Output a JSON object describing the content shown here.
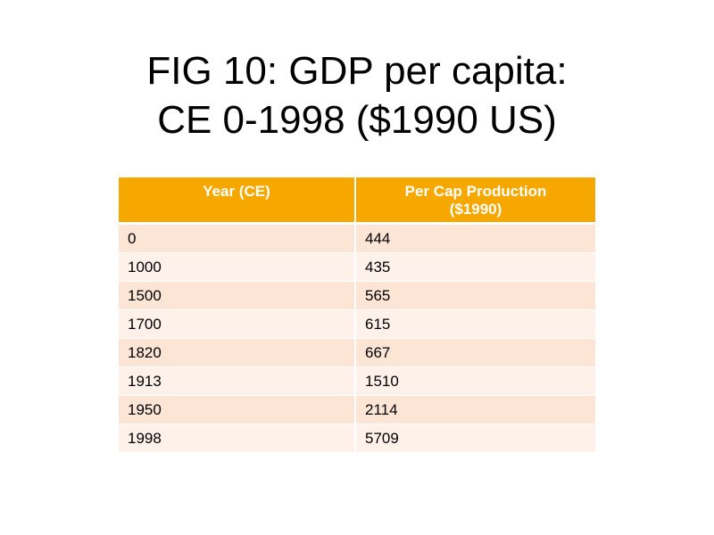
{
  "slide": {
    "title_line1": "FIG 10: GDP per capita:",
    "title_line2": "CE 0-1998 ($1990 US)"
  },
  "table": {
    "headers": {
      "year": "Year (CE)",
      "production_line1": "Per Cap Production",
      "production_line2": "($1990)"
    },
    "rows": [
      {
        "year": "0",
        "value": "444"
      },
      {
        "year": "1000",
        "value": "435"
      },
      {
        "year": "1500",
        "value": "565"
      },
      {
        "year": "1700",
        "value": "615"
      },
      {
        "year": "1820",
        "value": "667"
      },
      {
        "year": "1913",
        "value": "1510"
      },
      {
        "year": "1950",
        "value": "2114"
      },
      {
        "year": "1998",
        "value": "5709"
      }
    ]
  },
  "colors": {
    "header_bg": "#f6a800",
    "row_odd": "#fde5d6",
    "row_even": "#fef1ea"
  }
}
